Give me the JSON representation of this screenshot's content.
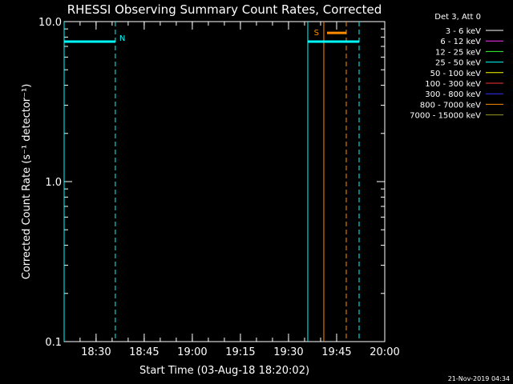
{
  "chart_data": {
    "type": "line",
    "title": "RHESSI Observing Summary Count Rates, Corrected",
    "xlabel": "Start Time (03-Aug-18 18:20:02)",
    "ylabel": "Corrected Count Rate (s⁻¹ detector⁻¹)",
    "x_range": [
      "18:20:02",
      "20:00:00"
    ],
    "x_ticks": [
      "18:30",
      "18:45",
      "19:00",
      "19:15",
      "19:30",
      "19:45",
      "20:00"
    ],
    "y_scale": "log",
    "ylim": [
      0.1,
      10.0
    ],
    "y_ticks": [
      "0.1",
      "1.0",
      "10.0"
    ],
    "legend_header": "Det 3, Att 0",
    "legend_placement": "right, outside plot",
    "legend": [
      {
        "label": "3 - 6 keV",
        "color": "#ffffff"
      },
      {
        "label": "6 - 12 keV",
        "color": "#ff33ff"
      },
      {
        "label": "12 - 25 keV",
        "color": "#33ff33"
      },
      {
        "label": "25 - 50 keV",
        "color": "#00ffff"
      },
      {
        "label": "50 - 100 keV",
        "color": "#ffff00"
      },
      {
        "label": "100 - 300 keV",
        "color": "#ff3333"
      },
      {
        "label": "300 - 800 keV",
        "color": "#3333ff"
      },
      {
        "label": "800 - 7000 keV",
        "color": "#ff8c00"
      },
      {
        "label": "7000 - 15000 keV",
        "color": "#9a9a20"
      }
    ],
    "series": [
      {
        "name": "25 - 50 keV",
        "color": "#00ffff",
        "segments": [
          {
            "x": [
              "18:20:02",
              "18:36:00"
            ],
            "y": [
              7.5,
              7.5
            ]
          },
          {
            "x": [
              "19:36:00",
              "19:52:00"
            ],
            "y": [
              7.5,
              7.5
            ]
          }
        ]
      },
      {
        "name": "800 - 7000 keV",
        "color": "#ff8c00",
        "segments": [
          {
            "x": [
              "19:42:00",
              "19:48:00"
            ],
            "y": [
              8.5,
              8.5
            ]
          }
        ]
      }
    ],
    "markers": [
      {
        "time": "18:20:02",
        "color": "#00ffff",
        "style": "solid"
      },
      {
        "time": "18:36:00",
        "color": "#00ffff",
        "style": "dashed",
        "label": "N"
      },
      {
        "time": "19:36:00",
        "color": "#00ffff",
        "style": "solid"
      },
      {
        "time": "19:52:00",
        "color": "#00ffff",
        "style": "dashed"
      },
      {
        "time": "19:41:00",
        "color": "#ff8c00",
        "style": "solid",
        "label": "S"
      },
      {
        "time": "19:48:00",
        "color": "#ff8c00",
        "style": "dashed"
      }
    ]
  },
  "footer": {
    "timestamp": "21-Nov-2019 04:34"
  }
}
